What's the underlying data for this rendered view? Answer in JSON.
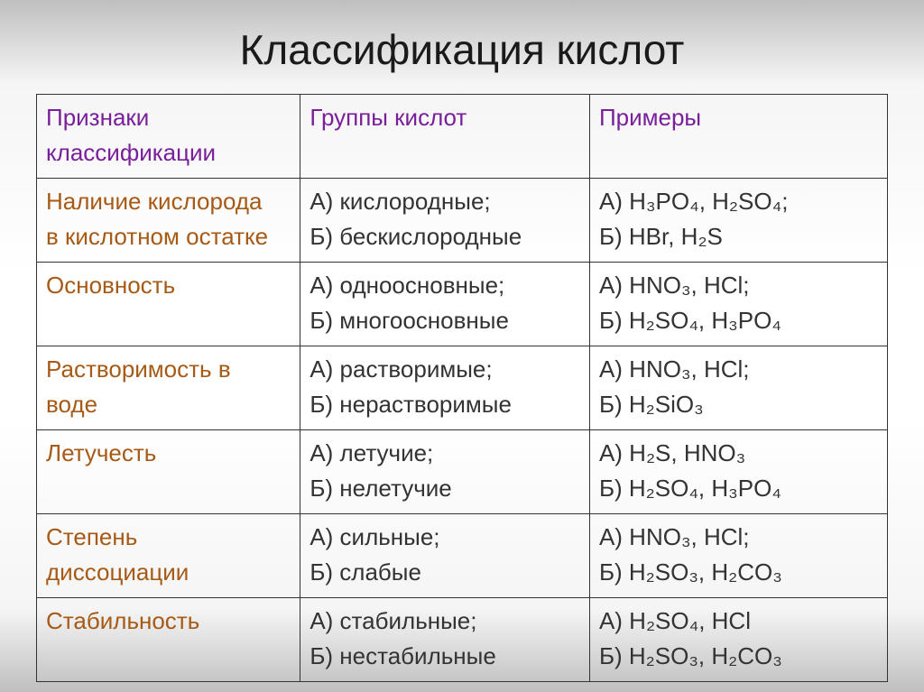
{
  "title": "Классификация кислот",
  "table": {
    "columns": [
      "Признаки классификации",
      "Группы кислот",
      "Примеры"
    ],
    "header_color": "#7a1f9a",
    "criteria_color": "#a65a16",
    "border_color": "#333333",
    "cell_fontsize": 26,
    "title_fontsize": 46,
    "rows": [
      {
        "criteria_lines": [
          " Наличие кислорода",
          "в кислотном остатке"
        ],
        "groups": [
          "А) кислородные;",
          "Б) бескислородные"
        ],
        "examples": [
          "А) H₃PO₄, H₂SO₄;",
          "Б) HBr, H₂S"
        ]
      },
      {
        "criteria_lines": [
          "Основность"
        ],
        "groups": [
          "А) одноосновные;",
          "Б) многоосновные"
        ],
        "examples": [
          "А) HNO₃, HCl;",
          "Б) H₂SO₄, H₃PO₄"
        ]
      },
      {
        "criteria_lines": [
          "Растворимость в",
          "воде"
        ],
        "groups": [
          "А) растворимые;",
          "Б) нерастворимые"
        ],
        "examples": [
          "А) HNO₃, HCl;",
          "Б) H₂SiO₃"
        ]
      },
      {
        "criteria_lines": [
          "Летучесть"
        ],
        "groups": [
          "А) летучие;",
          "Б) нелетучие"
        ],
        "examples": [
          "А) H₂S, HNO₃",
          "Б) H₂SO₄, H₃PO₄"
        ]
      },
      {
        "criteria_lines": [
          "Степень",
          "диссоциации"
        ],
        "groups": [
          "А) сильные;",
          "Б) слабые"
        ],
        "examples": [
          "А) HNO₃, HCl;",
          "Б) H₂SO₃, H₂CO₃"
        ]
      },
      {
        "criteria_lines": [
          "Стабильность"
        ],
        "groups": [
          "А) стабильные;",
          "Б) нестабильные"
        ],
        "examples": [
          "А) H₂SO₄, HCl",
          "Б) H₂SO₃, H₂CO₃"
        ]
      }
    ]
  }
}
